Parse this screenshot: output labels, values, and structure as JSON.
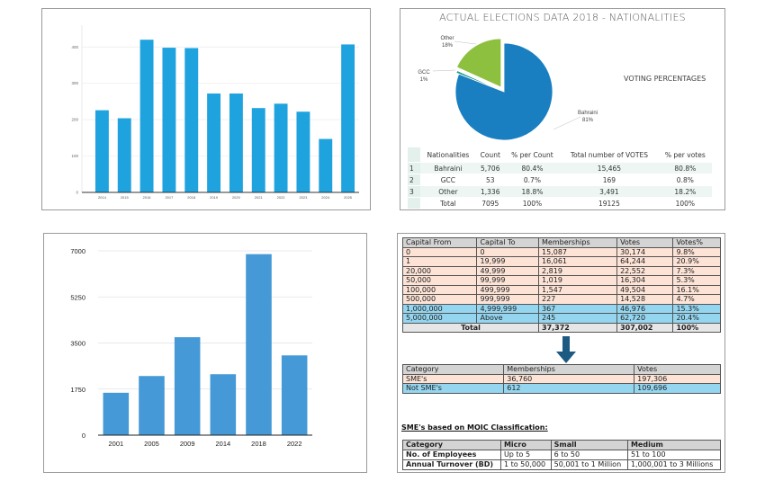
{
  "chart_data": [
    {
      "type": "bar",
      "title": "",
      "xlabel": "",
      "ylabel": "",
      "categories": [
        "2014",
        "2015",
        "2016",
        "2017",
        "2018",
        "2019",
        "2020",
        "2021",
        "2022",
        "2023",
        "2024",
        "2025"
      ],
      "values": [
        226,
        204,
        420,
        398,
        397,
        272,
        272,
        232,
        244,
        222,
        147,
        407
      ],
      "ylim": [
        0,
        460
      ],
      "yticks": [
        "0",
        "100",
        "200",
        "300",
        "400"
      ],
      "grid": true,
      "color": "#1fa3de"
    },
    {
      "type": "pie",
      "title": "ACTUAL ELECTIONS DATA 2018 - NATIONALITIES",
      "subtitle": "VOTING PERCENTAGES",
      "slices": [
        {
          "label": "Bahraini",
          "pct_label": "81%",
          "value": 80.8,
          "color": "#1a7fc1"
        },
        {
          "label": "GCC",
          "pct_label": "1%",
          "value": 0.8,
          "color": "#1a9a8a"
        },
        {
          "label": "Other",
          "pct_label": "18%",
          "value": 18.2,
          "color": "#8dc03f"
        }
      ],
      "table": {
        "headers": [
          "",
          "Nationalities",
          "Count",
          "% per Count",
          "Total number of VOTES",
          "% per votes"
        ],
        "rows": [
          [
            "1",
            "Bahraini",
            "5,706",
            "80.4%",
            "15,465",
            "80.8%"
          ],
          [
            "2",
            "GCC",
            "53",
            "0.7%",
            "169",
            "0.8%"
          ],
          [
            "3",
            "Other",
            "1,336",
            "18.8%",
            "3,491",
            "18.2%"
          ],
          [
            "",
            "Total",
            "7095",
            "100%",
            "19125",
            "100%"
          ]
        ]
      }
    },
    {
      "type": "bar",
      "title": "",
      "xlabel": "",
      "ylabel": "",
      "categories": [
        "2001",
        "2005",
        "2009",
        "2014",
        "2018",
        "2022"
      ],
      "values": [
        1610,
        2246,
        3720,
        2314,
        6874,
        3029
      ],
      "ylim": [
        0,
        7000
      ],
      "yticks": [
        "0",
        "1750",
        "3500",
        "5250",
        "7000"
      ],
      "grid": true,
      "color": "#4499d6"
    },
    {
      "type": "table",
      "capital_table": {
        "headers": [
          "Capital From",
          "Capital To",
          "Memberships",
          "Votes",
          "Votes%"
        ],
        "rows": [
          {
            "cells": [
              "0",
              "0",
              "15,087",
              "30,174",
              "9.8%"
            ],
            "style": "pink"
          },
          {
            "cells": [
              "1",
              "19,999",
              "16,061",
              "64,244",
              "20.9%"
            ],
            "style": "pink"
          },
          {
            "cells": [
              "20,000",
              "49,999",
              "2,819",
              "22,552",
              "7.3%"
            ],
            "style": "pink"
          },
          {
            "cells": [
              "50,000",
              "99,999",
              "1,019",
              "16,304",
              "5.3%"
            ],
            "style": "pink"
          },
          {
            "cells": [
              "100,000",
              "499,999",
              "1,547",
              "49,504",
              "16.1%"
            ],
            "style": "pink"
          },
          {
            "cells": [
              "500,000",
              "999,999",
              "227",
              "14,528",
              "4.7%"
            ],
            "style": "pink"
          },
          {
            "cells": [
              "1,000,000",
              "4,999,999",
              "367",
              "46,976",
              "15.3%"
            ],
            "style": "blue"
          },
          {
            "cells": [
              "5,000,000",
              "Above",
              "245",
              "62,720",
              "20.4%"
            ],
            "style": "blue"
          }
        ],
        "total": {
          "label": "Total",
          "memberships": "37,372",
          "votes": "307,002",
          "pct": "100%"
        }
      },
      "sme_table": {
        "headers": [
          "Category",
          "Memberships",
          "Votes"
        ],
        "rows": [
          [
            "SME's",
            "36,760",
            "197,306"
          ],
          [
            "Not SME's",
            "612",
            "109,696"
          ]
        ]
      },
      "moic": {
        "title": "SME's based on MOIC Classification:",
        "headers": [
          "Category",
          "Micro",
          "Small",
          "Medium"
        ],
        "rows": [
          [
            "No. of Employees",
            "Up to 5",
            "6 to 50",
            "51 to 100"
          ],
          [
            "Annual Turnover (BD)",
            "1 to 50,000",
            "50,001 to 1 Million",
            "1,000,001 to 3 Millions"
          ]
        ]
      }
    }
  ]
}
